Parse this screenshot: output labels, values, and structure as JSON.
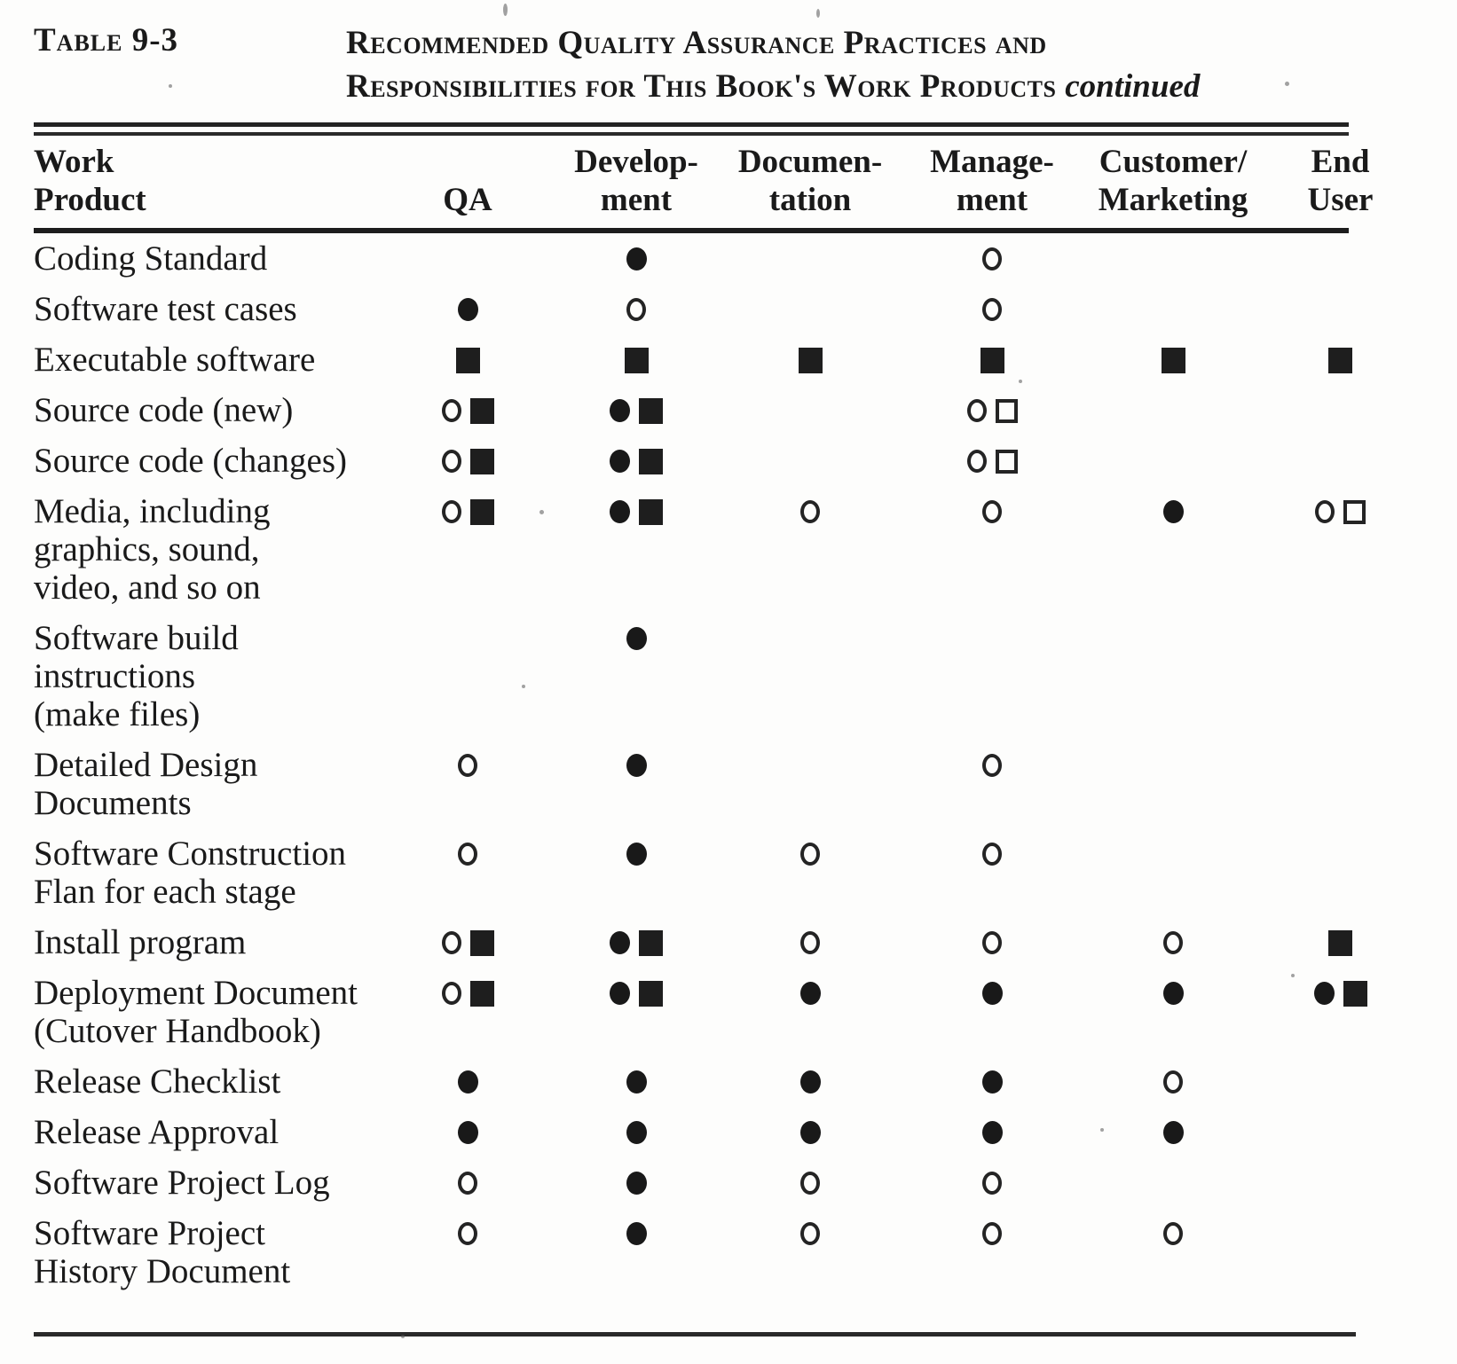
{
  "page": {
    "table_label": "Table 9-3",
    "title_line1": "Recommended Quality Assurance Practices and",
    "title_line2": "Responsibilities for This Book's Work Products",
    "continued_note": "continued"
  },
  "colors": {
    "ink": "#1a1a1a",
    "paper": "#fdfdfc"
  },
  "table": {
    "columns": [
      {
        "id": "work_product",
        "lines": [
          "Work",
          "Product"
        ]
      },
      {
        "id": "qa",
        "lines": [
          "QA"
        ]
      },
      {
        "id": "development",
        "lines": [
          "Develop-",
          "ment"
        ]
      },
      {
        "id": "documentation",
        "lines": [
          "Documen-",
          "tation"
        ]
      },
      {
        "id": "management",
        "lines": [
          "Manage-",
          "ment"
        ]
      },
      {
        "id": "customer_marketing",
        "lines": [
          "Customer/",
          "Marketing"
        ]
      },
      {
        "id": "end_user",
        "lines": [
          "End",
          "User"
        ]
      }
    ],
    "symbol_types": [
      "filled-circle",
      "open-circle",
      "filled-square",
      "open-square"
    ],
    "rows": [
      {
        "label_lines": [
          "Coding Standard"
        ],
        "cells": {
          "qa": [],
          "development": [
            "filled-circle"
          ],
          "documentation": [],
          "management": [
            "open-circle"
          ],
          "customer_marketing": [],
          "end_user": []
        }
      },
      {
        "label_lines": [
          "Software test cases"
        ],
        "cells": {
          "qa": [
            "filled-circle"
          ],
          "development": [
            "open-circle"
          ],
          "documentation": [],
          "management": [
            "open-circle"
          ],
          "customer_marketing": [],
          "end_user": []
        }
      },
      {
        "label_lines": [
          "Executable  software"
        ],
        "cells": {
          "qa": [
            "filled-square"
          ],
          "development": [
            "filled-square"
          ],
          "documentation": [
            "filled-square"
          ],
          "management": [
            "filled-square"
          ],
          "customer_marketing": [
            "filled-square"
          ],
          "end_user": [
            "filled-square"
          ]
        }
      },
      {
        "label_lines": [
          "Source code (new)"
        ],
        "cells": {
          "qa": [
            "open-circle",
            "filled-square"
          ],
          "development": [
            "filled-circle",
            "filled-square"
          ],
          "documentation": [],
          "management": [
            "open-circle",
            "open-square"
          ],
          "customer_marketing": [],
          "end_user": []
        }
      },
      {
        "label_lines": [
          "Source code (changes)"
        ],
        "cells": {
          "qa": [
            "open-circle",
            "filled-square"
          ],
          "development": [
            "filled-circle",
            "filled-square"
          ],
          "documentation": [],
          "management": [
            "open-circle",
            "open-square"
          ],
          "customer_marketing": [],
          "end_user": []
        }
      },
      {
        "label_lines": [
          "Media, including",
          "graphics, sound,",
          "video, and so on"
        ],
        "cells": {
          "qa": [
            "open-circle",
            "filled-square"
          ],
          "development": [
            "filled-circle",
            "filled-square"
          ],
          "documentation": [
            "open-circle"
          ],
          "management": [
            "open-circle"
          ],
          "customer_marketing": [
            "filled-circle"
          ],
          "end_user": [
            "open-circle",
            "open-square"
          ]
        }
      },
      {
        "label_lines": [
          "Software  build",
          "instructions",
          "(make files)"
        ],
        "cells": {
          "qa": [],
          "development": [
            "filled-circle"
          ],
          "documentation": [],
          "management": [],
          "customer_marketing": [],
          "end_user": []
        }
      },
      {
        "label_lines": [
          "Detailed Design",
          "Documents"
        ],
        "cells": {
          "qa": [
            "open-circle"
          ],
          "development": [
            "filled-circle"
          ],
          "documentation": [],
          "management": [
            "open-circle"
          ],
          "customer_marketing": [],
          "end_user": []
        }
      },
      {
        "label_lines": [
          "Software  Construction",
          "Flan for each stage"
        ],
        "cells": {
          "qa": [
            "open-circle"
          ],
          "development": [
            "filled-circle"
          ],
          "documentation": [
            "open-circle"
          ],
          "management": [
            "open-circle"
          ],
          "customer_marketing": [],
          "end_user": []
        }
      },
      {
        "label_lines": [
          "Install program"
        ],
        "cells": {
          "qa": [
            "open-circle",
            "filled-square"
          ],
          "development": [
            "filled-circle",
            "filled-square"
          ],
          "documentation": [
            "open-circle"
          ],
          "management": [
            "open-circle"
          ],
          "customer_marketing": [
            "open-circle"
          ],
          "end_user": [
            "filled-square"
          ]
        }
      },
      {
        "label_lines": [
          "Deployment Document",
          "(Cutover  Handbook)"
        ],
        "cells": {
          "qa": [
            "open-circle",
            "filled-square"
          ],
          "development": [
            "filled-circle",
            "filled-square"
          ],
          "documentation": [
            "filled-circle"
          ],
          "management": [
            "filled-circle"
          ],
          "customer_marketing": [
            "filled-circle"
          ],
          "end_user": [
            "filled-circle",
            "filled-square"
          ]
        }
      },
      {
        "label_lines": [
          "Release  Checklist"
        ],
        "cells": {
          "qa": [
            "filled-circle"
          ],
          "development": [
            "filled-circle"
          ],
          "documentation": [
            "filled-circle"
          ],
          "management": [
            "filled-circle"
          ],
          "customer_marketing": [
            "open-circle"
          ],
          "end_user": []
        }
      },
      {
        "label_lines": [
          "Release  Approval"
        ],
        "cells": {
          "qa": [
            "filled-circle"
          ],
          "development": [
            "filled-circle"
          ],
          "documentation": [
            "filled-circle"
          ],
          "management": [
            "filled-circle"
          ],
          "customer_marketing": [
            "filled-circle"
          ],
          "end_user": []
        }
      },
      {
        "label_lines": [
          "Software Project Log"
        ],
        "cells": {
          "qa": [
            "open-circle"
          ],
          "development": [
            "filled-circle"
          ],
          "documentation": [
            "open-circle"
          ],
          "management": [
            "open-circle"
          ],
          "customer_marketing": [],
          "end_user": []
        }
      },
      {
        "label_lines": [
          "Software Project",
          "History Document"
        ],
        "cells": {
          "qa": [
            "open-circle"
          ],
          "development": [
            "filled-circle"
          ],
          "documentation": [
            "open-circle"
          ],
          "management": [
            "open-circle"
          ],
          "customer_marketing": [
            "open-circle"
          ],
          "end_user": []
        }
      }
    ]
  }
}
